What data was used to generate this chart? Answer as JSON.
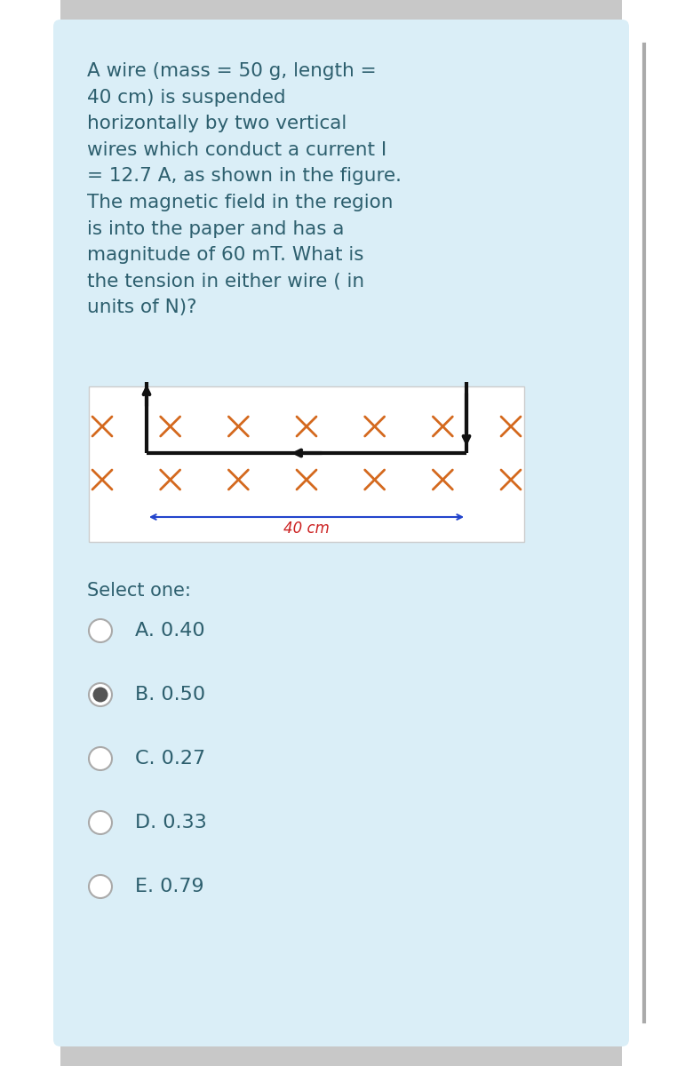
{
  "bg_color": "#e8f4f8",
  "card_color": "#daeef7",
  "fig_bg_color": "#ffffff",
  "text_color": "#2d5f6e",
  "question_text": "A wire (mass = 50 g, length =\n40 cm) is suspended\nhorizontally by two vertical\nwires which conduct a current I\n= 12.7 A, as shown in the figure.\nThe magnetic field in the region\nis into the paper and has a\nmagnitude of 60 mT. What is\nthe tension in either wire ( in\nunits of N)?",
  "x_color": "#d4691e",
  "wire_color": "#111111",
  "arrow_color": "#2244cc",
  "label_color": "#cc2222",
  "select_text": "Select one:",
  "options": [
    "A. 0.40",
    "B. 0.50",
    "C. 0.27",
    "D. 0.33",
    "E. 0.79"
  ],
  "selected_index": 1,
  "dim_label": "40 cm",
  "question_fontsize": 15.5,
  "option_fontsize": 16,
  "select_fontsize": 15
}
